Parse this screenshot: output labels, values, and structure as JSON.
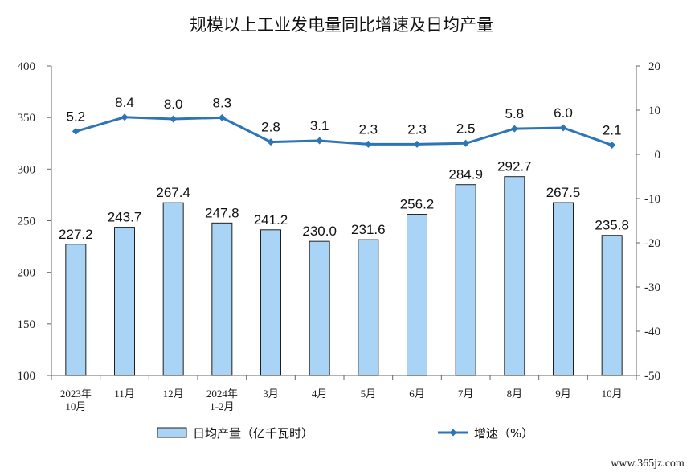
{
  "chart_data": {
    "type": "bar",
    "title": "规模以上工业发电量同比增速及日均产量",
    "categories": [
      [
        "2023年",
        "10月"
      ],
      [
        "11月"
      ],
      [
        "12月"
      ],
      [
        "2024年",
        "1-2月"
      ],
      [
        "3月"
      ],
      [
        "4月"
      ],
      [
        "5月"
      ],
      [
        "6月"
      ],
      [
        "7月"
      ],
      [
        "8月"
      ],
      [
        "9月"
      ],
      [
        "10月"
      ]
    ],
    "series": [
      {
        "name": "日均产量（亿千瓦时）",
        "type": "bar",
        "axis": "left",
        "color": "#a9d4f5",
        "values": [
          227.2,
          243.7,
          267.4,
          247.8,
          241.2,
          230.0,
          231.6,
          256.2,
          284.9,
          292.7,
          267.5,
          235.8
        ],
        "labels": [
          "227.2",
          "243.7",
          "267.4",
          "247.8",
          "241.2",
          "230.0",
          "231.6",
          "256.2",
          "284.9",
          "292.7",
          "267.5",
          "235.8"
        ]
      },
      {
        "name": "增速（%）",
        "type": "line",
        "axis": "right",
        "color": "#2e75b6",
        "values": [
          5.2,
          8.4,
          8.0,
          8.3,
          2.8,
          3.1,
          2.3,
          2.3,
          2.5,
          5.8,
          6.0,
          2.1
        ],
        "labels": [
          "5.2",
          "8.4",
          "8.0",
          "8.3",
          "2.8",
          "3.1",
          "2.3",
          "2.3",
          "2.5",
          "5.8",
          "6.0",
          "2.1"
        ]
      }
    ],
    "y_left": {
      "min": 100,
      "max": 400,
      "ticks": [
        "100",
        "150",
        "200",
        "250",
        "300",
        "350",
        "400"
      ]
    },
    "y_right": {
      "min": -50,
      "max": 20,
      "ticks": [
        "-50",
        "-40",
        "-30",
        "-20",
        "-10",
        "0",
        "10",
        "20"
      ]
    },
    "grid": false,
    "legend_position": "bottom"
  },
  "watermark": "www.365jz.com"
}
